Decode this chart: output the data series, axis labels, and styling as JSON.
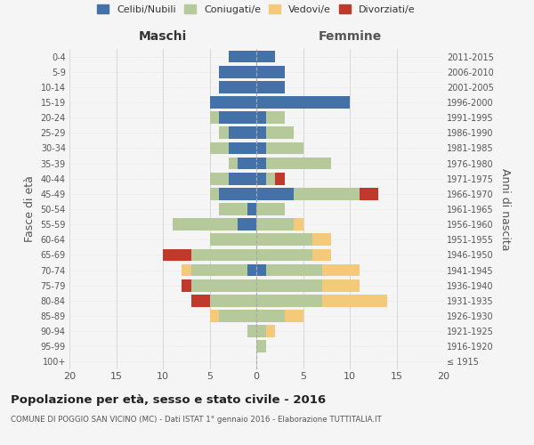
{
  "age_groups": [
    "100+",
    "95-99",
    "90-94",
    "85-89",
    "80-84",
    "75-79",
    "70-74",
    "65-69",
    "60-64",
    "55-59",
    "50-54",
    "45-49",
    "40-44",
    "35-39",
    "30-34",
    "25-29",
    "20-24",
    "15-19",
    "10-14",
    "5-9",
    "0-4"
  ],
  "birth_years": [
    "≤ 1915",
    "1916-1920",
    "1921-1925",
    "1926-1930",
    "1931-1935",
    "1936-1940",
    "1941-1945",
    "1946-1950",
    "1951-1955",
    "1956-1960",
    "1961-1965",
    "1966-1970",
    "1971-1975",
    "1976-1980",
    "1981-1985",
    "1986-1990",
    "1991-1995",
    "1996-2000",
    "2001-2005",
    "2006-2010",
    "2011-2015"
  ],
  "maschi": {
    "celibi": [
      0,
      0,
      0,
      0,
      0,
      0,
      1,
      0,
      0,
      2,
      1,
      4,
      3,
      2,
      3,
      3,
      4,
      5,
      4,
      4,
      3
    ],
    "coniugati": [
      0,
      0,
      1,
      4,
      5,
      7,
      6,
      7,
      5,
      7,
      3,
      1,
      2,
      1,
      2,
      1,
      1,
      0,
      0,
      0,
      0
    ],
    "vedovi": [
      0,
      0,
      0,
      1,
      0,
      0,
      1,
      0,
      0,
      0,
      0,
      0,
      0,
      0,
      0,
      0,
      0,
      0,
      0,
      0,
      0
    ],
    "divorziati": [
      0,
      0,
      0,
      0,
      2,
      1,
      0,
      3,
      0,
      0,
      0,
      0,
      0,
      0,
      0,
      0,
      0,
      0,
      0,
      0,
      0
    ]
  },
  "femmine": {
    "nubili": [
      0,
      0,
      0,
      0,
      0,
      0,
      1,
      0,
      0,
      0,
      0,
      4,
      1,
      1,
      1,
      1,
      1,
      10,
      3,
      3,
      2
    ],
    "coniugate": [
      0,
      1,
      1,
      3,
      7,
      7,
      6,
      6,
      6,
      4,
      3,
      7,
      1,
      7,
      4,
      3,
      2,
      0,
      0,
      0,
      0
    ],
    "vedove": [
      0,
      0,
      1,
      2,
      7,
      4,
      4,
      2,
      2,
      1,
      0,
      0,
      0,
      0,
      0,
      0,
      0,
      0,
      0,
      0,
      0
    ],
    "divorziate": [
      0,
      0,
      0,
      0,
      0,
      0,
      0,
      0,
      0,
      0,
      0,
      2,
      1,
      0,
      0,
      0,
      0,
      0,
      0,
      0,
      0
    ]
  },
  "colors": {
    "celibi": "#4472a8",
    "coniugati": "#b5c99a",
    "vedovi": "#f5c97a",
    "divorziati": "#c0392b"
  },
  "xlim": 20,
  "title": "Popolazione per età, sesso e stato civile - 2016",
  "subtitle": "COMUNE DI POGGIO SAN VICINO (MC) - Dati ISTAT 1° gennaio 2016 - Elaborazione TUTTITALIA.IT",
  "ylabel_left": "Fasce di età",
  "ylabel_right": "Anni di nascita",
  "xlabel_left": "Maschi",
  "xlabel_right": "Femmine",
  "bg_color": "#f5f5f5"
}
